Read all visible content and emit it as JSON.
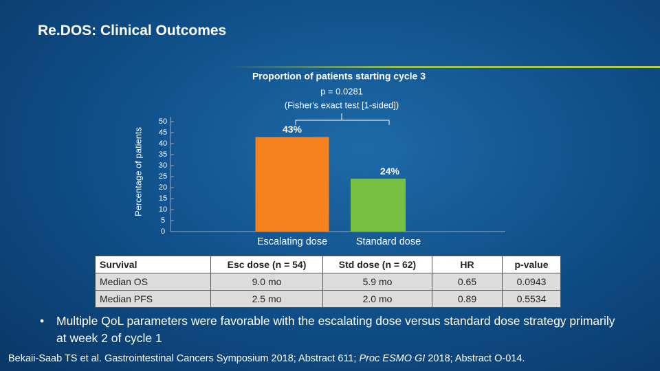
{
  "title": "Re.DOS: Clinical Outcomes",
  "chart_data": {
    "type": "bar",
    "title": "Proportion of patients starting cycle 3",
    "annotations": [
      "p = 0.0281",
      "(Fisher's exact test [1-sided])"
    ],
    "ylabel": "Percentage of patients",
    "categories": [
      "Escalating dose",
      "Standard dose"
    ],
    "values": [
      43,
      24
    ],
    "value_labels": [
      "43%",
      "24%"
    ],
    "colors": [
      "#f5821f",
      "#77c043"
    ],
    "ylim": [
      0,
      50
    ],
    "yticks": [
      0,
      5,
      10,
      15,
      20,
      25,
      30,
      35,
      40,
      45,
      50
    ],
    "grid": false
  },
  "table": {
    "header": [
      "Survival",
      "Esc dose (n = 54)",
      "Std dose (n = 62)",
      "HR",
      "p-value"
    ],
    "rows": [
      [
        "Median OS",
        "9.0 mo",
        "5.9 mo",
        "0.65",
        "0.0943"
      ],
      [
        "Median PFS",
        "2.5 mo",
        "2.0 mo",
        "0.89",
        "0.5534"
      ]
    ]
  },
  "bullets": [
    "Multiple QoL parameters were favorable with the escalating dose versus standard dose strategy primarily at week 2 of cycle 1"
  ],
  "citation": [
    "Bekaii-Saab TS et al. Gastrointestinal Cancers Symposium 2018; Abstract 611; ",
    "Proc ESMO GI",
    " 2018; Abstract O-014."
  ]
}
